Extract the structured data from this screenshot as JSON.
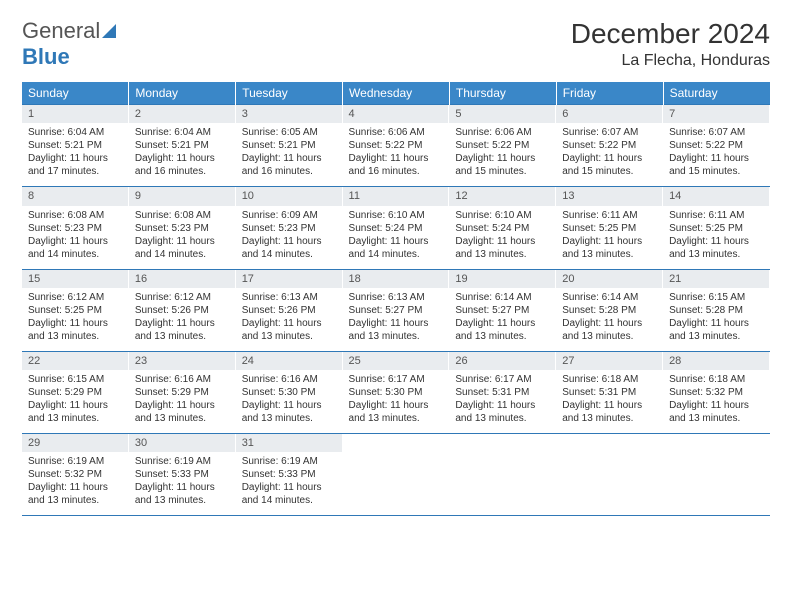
{
  "logo": {
    "general": "General",
    "blue": "Blue"
  },
  "title": "December 2024",
  "location": "La Flecha, Honduras",
  "weekdays": [
    "Sunday",
    "Monday",
    "Tuesday",
    "Wednesday",
    "Thursday",
    "Friday",
    "Saturday"
  ],
  "colors": {
    "header_bg": "#3a87c8",
    "header_text": "#ffffff",
    "daynum_bg": "#e9ecef",
    "border": "#2f78b7",
    "logo_blue": "#2f78b7"
  },
  "days": [
    {
      "n": "1",
      "sunrise": "6:04 AM",
      "sunset": "5:21 PM",
      "dh": "11",
      "dm": "17"
    },
    {
      "n": "2",
      "sunrise": "6:04 AM",
      "sunset": "5:21 PM",
      "dh": "11",
      "dm": "16"
    },
    {
      "n": "3",
      "sunrise": "6:05 AM",
      "sunset": "5:21 PM",
      "dh": "11",
      "dm": "16"
    },
    {
      "n": "4",
      "sunrise": "6:06 AM",
      "sunset": "5:22 PM",
      "dh": "11",
      "dm": "16"
    },
    {
      "n": "5",
      "sunrise": "6:06 AM",
      "sunset": "5:22 PM",
      "dh": "11",
      "dm": "15"
    },
    {
      "n": "6",
      "sunrise": "6:07 AM",
      "sunset": "5:22 PM",
      "dh": "11",
      "dm": "15"
    },
    {
      "n": "7",
      "sunrise": "6:07 AM",
      "sunset": "5:22 PM",
      "dh": "11",
      "dm": "15"
    },
    {
      "n": "8",
      "sunrise": "6:08 AM",
      "sunset": "5:23 PM",
      "dh": "11",
      "dm": "14"
    },
    {
      "n": "9",
      "sunrise": "6:08 AM",
      "sunset": "5:23 PM",
      "dh": "11",
      "dm": "14"
    },
    {
      "n": "10",
      "sunrise": "6:09 AM",
      "sunset": "5:23 PM",
      "dh": "11",
      "dm": "14"
    },
    {
      "n": "11",
      "sunrise": "6:10 AM",
      "sunset": "5:24 PM",
      "dh": "11",
      "dm": "14"
    },
    {
      "n": "12",
      "sunrise": "6:10 AM",
      "sunset": "5:24 PM",
      "dh": "11",
      "dm": "13"
    },
    {
      "n": "13",
      "sunrise": "6:11 AM",
      "sunset": "5:25 PM",
      "dh": "11",
      "dm": "13"
    },
    {
      "n": "14",
      "sunrise": "6:11 AM",
      "sunset": "5:25 PM",
      "dh": "11",
      "dm": "13"
    },
    {
      "n": "15",
      "sunrise": "6:12 AM",
      "sunset": "5:25 PM",
      "dh": "11",
      "dm": "13"
    },
    {
      "n": "16",
      "sunrise": "6:12 AM",
      "sunset": "5:26 PM",
      "dh": "11",
      "dm": "13"
    },
    {
      "n": "17",
      "sunrise": "6:13 AM",
      "sunset": "5:26 PM",
      "dh": "11",
      "dm": "13"
    },
    {
      "n": "18",
      "sunrise": "6:13 AM",
      "sunset": "5:27 PM",
      "dh": "11",
      "dm": "13"
    },
    {
      "n": "19",
      "sunrise": "6:14 AM",
      "sunset": "5:27 PM",
      "dh": "11",
      "dm": "13"
    },
    {
      "n": "20",
      "sunrise": "6:14 AM",
      "sunset": "5:28 PM",
      "dh": "11",
      "dm": "13"
    },
    {
      "n": "21",
      "sunrise": "6:15 AM",
      "sunset": "5:28 PM",
      "dh": "11",
      "dm": "13"
    },
    {
      "n": "22",
      "sunrise": "6:15 AM",
      "sunset": "5:29 PM",
      "dh": "11",
      "dm": "13"
    },
    {
      "n": "23",
      "sunrise": "6:16 AM",
      "sunset": "5:29 PM",
      "dh": "11",
      "dm": "13"
    },
    {
      "n": "24",
      "sunrise": "6:16 AM",
      "sunset": "5:30 PM",
      "dh": "11",
      "dm": "13"
    },
    {
      "n": "25",
      "sunrise": "6:17 AM",
      "sunset": "5:30 PM",
      "dh": "11",
      "dm": "13"
    },
    {
      "n": "26",
      "sunrise": "6:17 AM",
      "sunset": "5:31 PM",
      "dh": "11",
      "dm": "13"
    },
    {
      "n": "27",
      "sunrise": "6:18 AM",
      "sunset": "5:31 PM",
      "dh": "11",
      "dm": "13"
    },
    {
      "n": "28",
      "sunrise": "6:18 AM",
      "sunset": "5:32 PM",
      "dh": "11",
      "dm": "13"
    },
    {
      "n": "29",
      "sunrise": "6:19 AM",
      "sunset": "5:32 PM",
      "dh": "11",
      "dm": "13"
    },
    {
      "n": "30",
      "sunrise": "6:19 AM",
      "sunset": "5:33 PM",
      "dh": "11",
      "dm": "13"
    },
    {
      "n": "31",
      "sunrise": "6:19 AM",
      "sunset": "5:33 PM",
      "dh": "11",
      "dm": "14"
    }
  ],
  "labels": {
    "sunrise": "Sunrise:",
    "sunset": "Sunset:",
    "daylight_pre": "Daylight:",
    "hours_word": "hours",
    "and_word": "and",
    "minutes_word": "minutes."
  }
}
